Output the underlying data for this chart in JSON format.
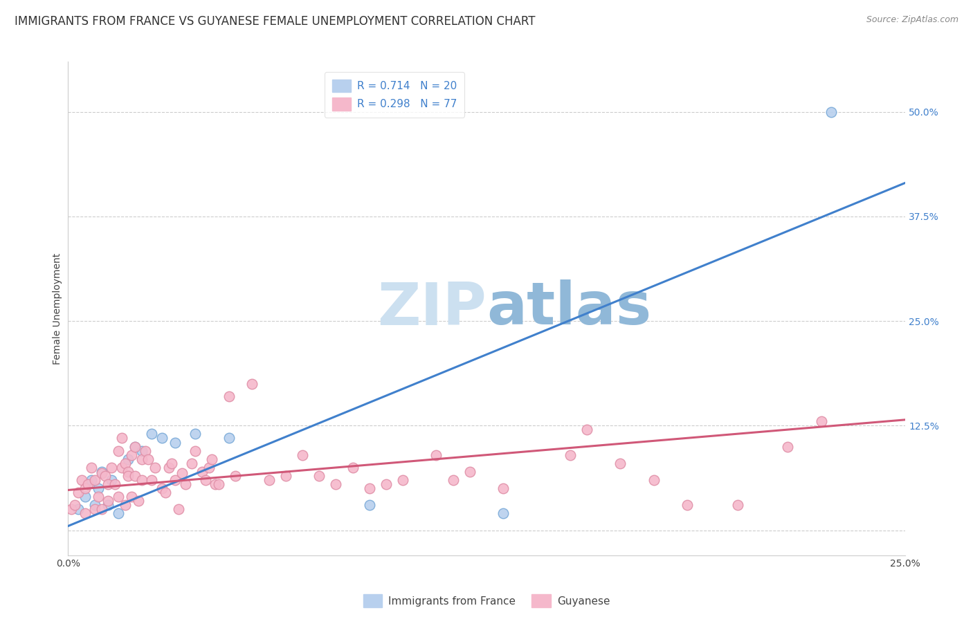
{
  "title": "IMMIGRANTS FROM FRANCE VS GUYANESE FEMALE UNEMPLOYMENT CORRELATION CHART",
  "source": "Source: ZipAtlas.com",
  "ylabel": "Female Unemployment",
  "y_ticks": [
    0.0,
    0.125,
    0.25,
    0.375,
    0.5
  ],
  "y_tick_labels": [
    "",
    "12.5%",
    "25.0%",
    "37.5%",
    "50.0%"
  ],
  "x_ticks": [
    0.0,
    0.05,
    0.1,
    0.15,
    0.2,
    0.25
  ],
  "x_tick_labels": [
    "0.0%",
    "",
    "",
    "",
    "",
    "25.0%"
  ],
  "xlim": [
    0.0,
    0.25
  ],
  "ylim": [
    -0.03,
    0.56
  ],
  "legend1_label": "R = 0.714   N = 20",
  "legend2_label": "R = 0.298   N = 77",
  "legend1_color": "#b8d0ee",
  "legend2_color": "#f5b8cb",
  "line1_color": "#4080cc",
  "line2_color": "#d05878",
  "scatter1_color": "#b8d0ee",
  "scatter1_edge": "#7aaad8",
  "scatter2_color": "#f5b8cb",
  "scatter2_edge": "#e090a8",
  "watermark_zip_color": "#cce0f0",
  "watermark_atlas_color": "#90b8d8",
  "background_color": "#ffffff",
  "title_fontsize": 12,
  "axis_label_fontsize": 10,
  "tick_fontsize": 10,
  "right_tick_color": "#4080cc",
  "blue_scatter_x": [
    0.003,
    0.005,
    0.007,
    0.008,
    0.009,
    0.01,
    0.012,
    0.013,
    0.015,
    0.018,
    0.02,
    0.022,
    0.025,
    0.028,
    0.032,
    0.038,
    0.048,
    0.09,
    0.13,
    0.228
  ],
  "blue_scatter_y": [
    0.025,
    0.04,
    0.06,
    0.03,
    0.05,
    0.07,
    0.03,
    0.06,
    0.02,
    0.085,
    0.1,
    0.095,
    0.115,
    0.11,
    0.105,
    0.115,
    0.11,
    0.03,
    0.02,
    0.5
  ],
  "pink_scatter_x": [
    0.001,
    0.002,
    0.003,
    0.004,
    0.005,
    0.005,
    0.006,
    0.007,
    0.008,
    0.008,
    0.009,
    0.01,
    0.01,
    0.011,
    0.012,
    0.012,
    0.013,
    0.014,
    0.015,
    0.015,
    0.016,
    0.016,
    0.017,
    0.017,
    0.018,
    0.018,
    0.019,
    0.019,
    0.02,
    0.02,
    0.021,
    0.022,
    0.022,
    0.023,
    0.024,
    0.025,
    0.026,
    0.028,
    0.029,
    0.03,
    0.031,
    0.032,
    0.033,
    0.034,
    0.035,
    0.037,
    0.038,
    0.04,
    0.041,
    0.042,
    0.043,
    0.044,
    0.045,
    0.048,
    0.05,
    0.055,
    0.06,
    0.065,
    0.07,
    0.075,
    0.08,
    0.085,
    0.09,
    0.095,
    0.1,
    0.11,
    0.115,
    0.12,
    0.13,
    0.15,
    0.155,
    0.165,
    0.175,
    0.185,
    0.2,
    0.215,
    0.225
  ],
  "pink_scatter_y": [
    0.025,
    0.03,
    0.045,
    0.06,
    0.02,
    0.05,
    0.055,
    0.075,
    0.06,
    0.025,
    0.04,
    0.068,
    0.025,
    0.065,
    0.055,
    0.035,
    0.075,
    0.055,
    0.04,
    0.095,
    0.075,
    0.11,
    0.08,
    0.03,
    0.07,
    0.065,
    0.09,
    0.04,
    0.065,
    0.1,
    0.035,
    0.085,
    0.06,
    0.095,
    0.085,
    0.06,
    0.075,
    0.05,
    0.045,
    0.075,
    0.08,
    0.06,
    0.025,
    0.068,
    0.055,
    0.08,
    0.095,
    0.07,
    0.06,
    0.075,
    0.085,
    0.055,
    0.055,
    0.16,
    0.065,
    0.175,
    0.06,
    0.065,
    0.09,
    0.065,
    0.055,
    0.075,
    0.05,
    0.055,
    0.06,
    0.09,
    0.06,
    0.07,
    0.05,
    0.09,
    0.12,
    0.08,
    0.06,
    0.03,
    0.03,
    0.1,
    0.13
  ],
  "line1_x": [
    0.0,
    0.25
  ],
  "line1_y": [
    0.005,
    0.415
  ],
  "line2_x": [
    0.0,
    0.25
  ],
  "line2_y": [
    0.048,
    0.132
  ]
}
